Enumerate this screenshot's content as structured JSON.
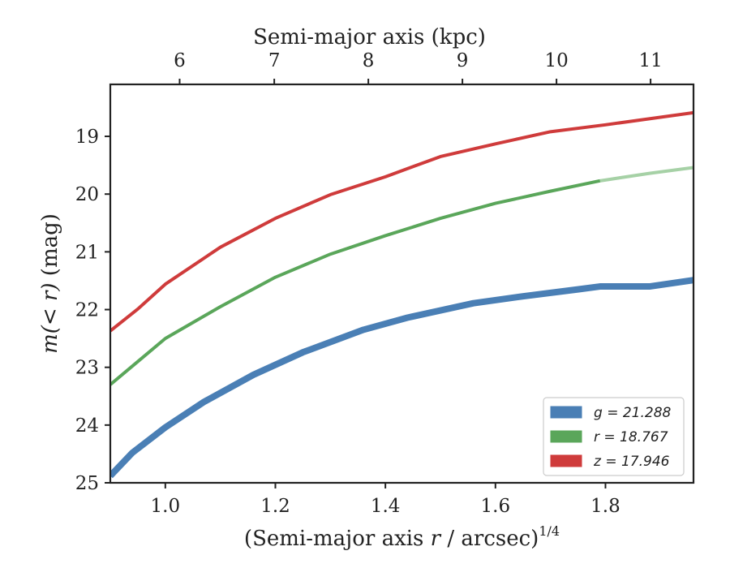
{
  "chart_data": {
    "type": "line",
    "title": "",
    "xlabel": "(Semi-major axis r / arcsec)1/4",
    "xlabel_parts": {
      "main": "(Semi-major axis ",
      "var": "r",
      "rest": " / arcsec)",
      "sup": "1/4"
    },
    "ylabel": "m(< r) (mag)",
    "ylabel_parts": {
      "var": "m(< r)",
      "rest": " (mag)"
    },
    "x2label": "Semi-major axis (kpc)",
    "xlim": [
      0.9,
      1.96
    ],
    "ylim": [
      25,
      18.1
    ],
    "y_inverted": true,
    "xticks": [
      1.0,
      1.2,
      1.4,
      1.6,
      1.8
    ],
    "xtick_labels": [
      "1.0",
      "1.2",
      "1.4",
      "1.6",
      "1.8"
    ],
    "yticks": [
      19,
      20,
      21,
      22,
      23,
      24,
      25
    ],
    "ytick_labels": [
      "19",
      "20",
      "21",
      "22",
      "23",
      "24",
      "25"
    ],
    "x2ticks": [
      6,
      7,
      8,
      9,
      10,
      11
    ],
    "x2tick_labels": [
      "6",
      "7",
      "8",
      "9",
      "10",
      "11"
    ],
    "x2_to_x_ref": {
      "kpc": [
        6,
        7,
        8,
        9,
        10,
        11
      ],
      "x": [
        1.026,
        1.198,
        1.369,
        1.54,
        1.711,
        1.882
      ]
    },
    "legend_position": "lower-right",
    "series": [
      {
        "name": "g = 21.288",
        "color": "#4a7fb5",
        "width": 8,
        "x": [
          0.9,
          0.94,
          1.0,
          1.07,
          1.16,
          1.25,
          1.36,
          1.44,
          1.56,
          1.65,
          1.75,
          1.79,
          1.88,
          1.96
        ],
        "y": [
          24.88,
          24.48,
          24.04,
          23.6,
          23.13,
          22.74,
          22.35,
          22.14,
          21.89,
          21.77,
          21.65,
          21.6,
          21.6,
          21.49
        ]
      },
      {
        "name": "r = 18.767",
        "color": "#5aa65a",
        "width": 4,
        "x": [
          0.9,
          0.95,
          1.0,
          1.1,
          1.2,
          1.3,
          1.4,
          1.5,
          1.6,
          1.7,
          1.79
        ],
        "y": [
          23.3,
          22.9,
          22.5,
          21.95,
          21.44,
          21.04,
          20.72,
          20.42,
          20.16,
          19.95,
          19.77
        ],
        "extension": {
          "color": "#a6d1a6",
          "x": [
            1.79,
            1.88,
            1.96
          ],
          "y": [
            19.77,
            19.64,
            19.54
          ]
        }
      },
      {
        "name": "z = 17.946",
        "color": "#cf3b3b",
        "width": 4,
        "x": [
          0.9,
          0.95,
          1.0,
          1.1,
          1.2,
          1.3,
          1.4,
          1.5,
          1.6,
          1.7,
          1.8,
          1.96
        ],
        "y": [
          22.37,
          21.99,
          21.56,
          20.92,
          20.42,
          20.01,
          19.7,
          19.35,
          19.13,
          18.92,
          18.8,
          18.59
        ]
      }
    ]
  }
}
